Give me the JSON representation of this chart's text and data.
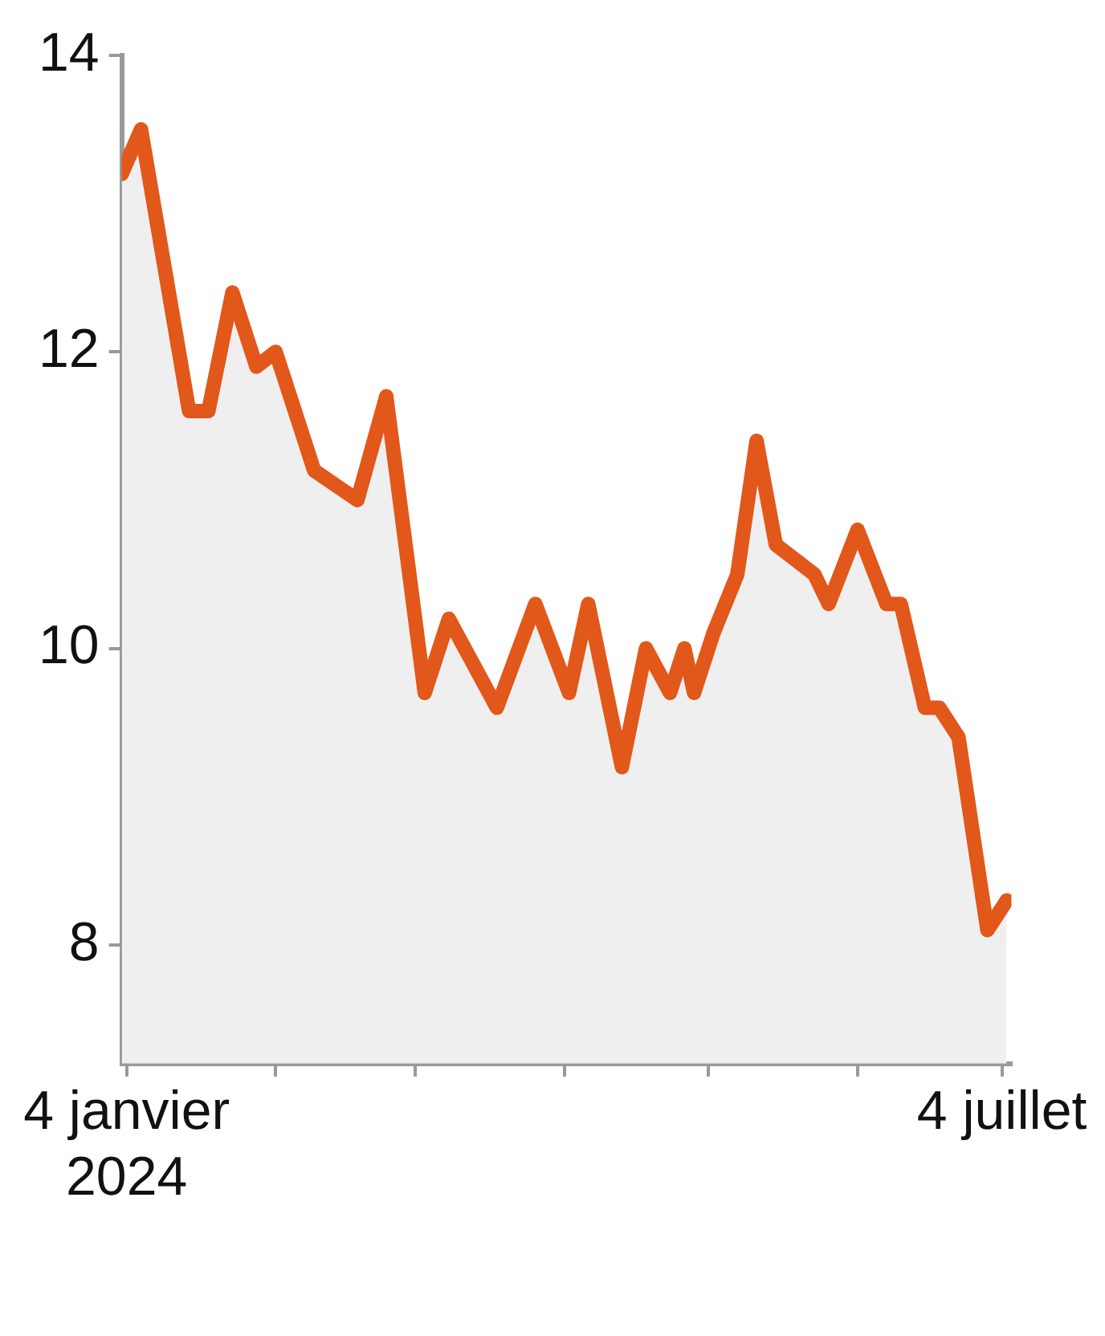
{
  "chart_data": {
    "type": "area",
    "x": [
      "2024-01-03",
      "2024-01-07",
      "2024-01-17",
      "2024-01-21",
      "2024-01-26",
      "2024-01-31",
      "2024-02-04",
      "2024-02-12",
      "2024-02-21",
      "2024-02-27",
      "2024-03-06",
      "2024-03-11",
      "2024-03-21",
      "2024-03-29",
      "2024-04-05",
      "2024-04-09",
      "2024-04-16",
      "2024-04-21",
      "2024-04-26",
      "2024-04-29",
      "2024-05-01",
      "2024-05-05",
      "2024-05-10",
      "2024-05-14",
      "2024-05-18",
      "2024-05-26",
      "2024-05-29",
      "2024-06-04",
      "2024-06-10",
      "2024-06-13",
      "2024-06-18",
      "2024-06-21",
      "2024-06-25",
      "2024-07-01",
      "2024-07-05"
    ],
    "series": [
      {
        "color": "#e2571a",
        "values": [
          13.2,
          13.5,
          11.6,
          11.6,
          12.4,
          11.9,
          12.0,
          11.2,
          11.0,
          11.7,
          9.7,
          10.2,
          9.6,
          10.3,
          9.7,
          10.3,
          9.2,
          10.0,
          9.7,
          10.0,
          9.7,
          10.1,
          10.5,
          11.4,
          10.7,
          10.5,
          10.3,
          10.8,
          10.3,
          10.3,
          9.6,
          9.6,
          9.4,
          8.1,
          8.3
        ]
      }
    ],
    "ylim": [
      7.2,
      14
    ],
    "yticks": [
      8,
      10,
      12,
      14
    ],
    "xlim": [
      "2024-01-03",
      "2024-07-06"
    ],
    "xticks": [
      {
        "value": "2024-01-04",
        "label": "4 janvier 2024"
      },
      {
        "value": "2024-02-04",
        "label": null
      },
      {
        "value": "2024-03-04",
        "label": null
      },
      {
        "value": "2024-04-04",
        "label": null
      },
      {
        "value": "2024-05-04",
        "label": null
      },
      {
        "value": "2024-06-04",
        "label": null
      },
      {
        "value": "2024-07-04",
        "label": "4 juillet"
      }
    ],
    "grid": false,
    "legend": false,
    "marker": "none",
    "line_style": "solid"
  }
}
